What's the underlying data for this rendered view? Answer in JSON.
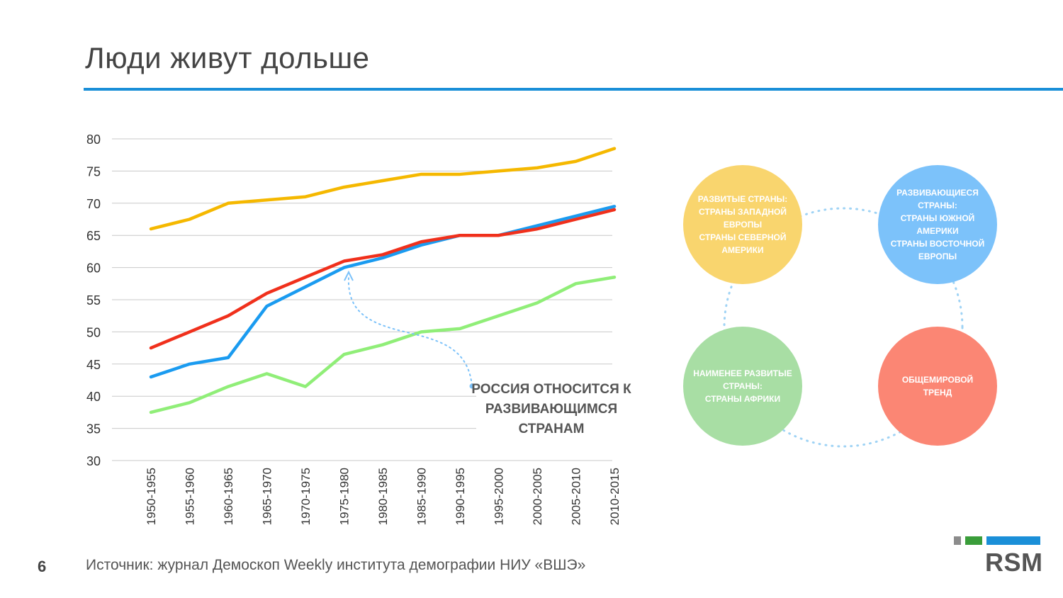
{
  "title": "Люди живут дольше",
  "page_number": "6",
  "source": "Источник: журнал Демоскоп Weekly института демографии НИУ «ВШЭ»",
  "annotation": "Россия относится к развивающимся странам",
  "logo": {
    "text": "RSM",
    "colors": [
      "#8c8c8c",
      "#3a9d3a",
      "#1a8fd8"
    ]
  },
  "circles": [
    {
      "key": "developed",
      "text": "Развитые страны:\nстраны Западной Европы\nстраны Северной Америки",
      "color": "#f9d56e"
    },
    {
      "key": "developing",
      "text": "Развивающиеся страны:\nстраны Южной Америки\nстраны Восточной Европы",
      "color": "#7cc2fa"
    },
    {
      "key": "least-developed",
      "text": "Наименее развитые страны:\nстраны Африки",
      "color": "#a8dea4"
    },
    {
      "key": "world-trend",
      "text": "Общемировой тренд",
      "color": "#fb8674"
    }
  ],
  "chart_data": {
    "type": "line",
    "title": "",
    "xlabel": "",
    "ylabel": "",
    "ylim": [
      30,
      80
    ],
    "yticks": [
      30,
      35,
      40,
      45,
      50,
      55,
      60,
      65,
      70,
      75,
      80
    ],
    "grid": true,
    "categories": [
      "1950-1955",
      "1955-1960",
      "1960-1965",
      "1965-1970",
      "1970-1975",
      "1975-1980",
      "1980-1985",
      "1985-1990",
      "1990-1995",
      "1995-2000",
      "2000-2005",
      "2005-2010",
      "2010-2015"
    ],
    "series": [
      {
        "name": "Развитые страны",
        "color": "#f5b800",
        "values": [
          66,
          67.5,
          70,
          70.5,
          71,
          72.5,
          73.5,
          74.5,
          74.5,
          75,
          75.5,
          76.5,
          78.5
        ]
      },
      {
        "name": "Развивающиеся страны",
        "color": "#1a9bf0",
        "values": [
          43,
          45,
          46,
          54,
          57,
          60,
          61.5,
          63.5,
          65,
          65,
          66.5,
          68,
          69.5
        ]
      },
      {
        "name": "Общемировой тренд",
        "color": "#f0301c",
        "values": [
          47.5,
          50,
          52.5,
          56,
          58.5,
          61,
          62,
          64,
          65,
          65,
          66,
          67.5,
          69
        ]
      },
      {
        "name": "Наименее развитые страны",
        "color": "#90ee78",
        "values": [
          37.5,
          39,
          41.5,
          43.5,
          41.5,
          46.5,
          48,
          50,
          50.5,
          52.5,
          54.5,
          57.5,
          58.5
        ]
      }
    ]
  }
}
